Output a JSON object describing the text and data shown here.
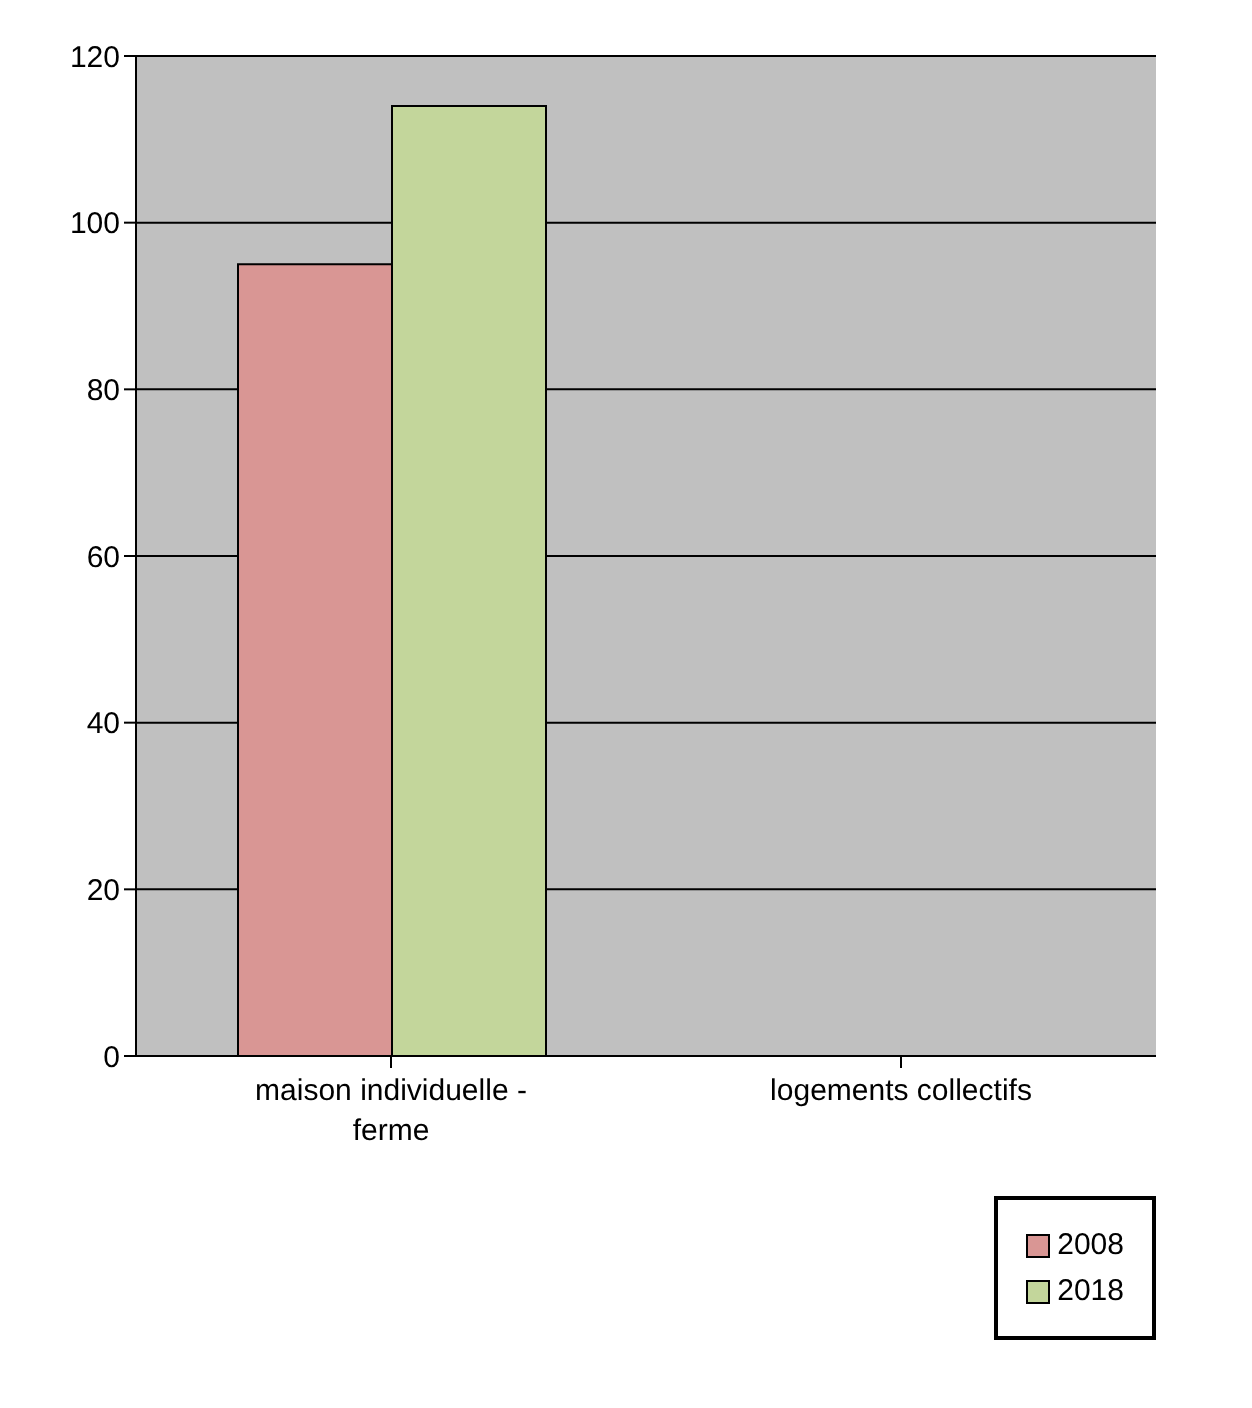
{
  "chart_data": {
    "type": "bar",
    "categories": [
      "maison individuelle - ferme",
      "logements collectifs"
    ],
    "series": [
      {
        "name": "2008",
        "color": "#d99694",
        "values": [
          95,
          0
        ]
      },
      {
        "name": "2018",
        "color": "#c3d69b",
        "values": [
          114,
          0
        ]
      }
    ],
    "ylim": [
      0,
      120
    ],
    "yticks": [
      0,
      20,
      40,
      60,
      80,
      100,
      120
    ],
    "grid": "y",
    "legend": "bottom right"
  }
}
